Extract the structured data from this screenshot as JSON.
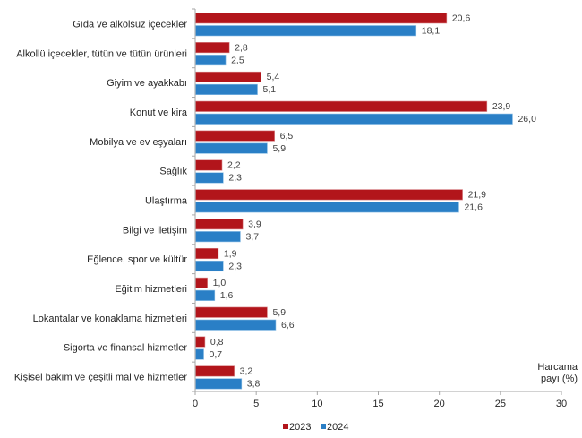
{
  "chart_data": {
    "type": "bar",
    "orientation": "horizontal",
    "title": "",
    "xlabel_lines": [
      "Harcama",
      "payı  (%)"
    ],
    "ylabel": "",
    "xlim": [
      0,
      30
    ],
    "x_ticks": [
      "0",
      "5",
      "10",
      "15",
      "20",
      "25",
      "30"
    ],
    "x_tick_values": [
      0,
      5,
      10,
      15,
      20,
      25,
      30
    ],
    "grid": false,
    "legend_position": "bottom-center",
    "categories": [
      "Gıda ve alkolsüz içecekler",
      "Alkollü içecekler, tütün ve tütün ürünleri",
      "Giyim ve ayakkabı",
      "Konut ve kira",
      "Mobilya ve ev eşyaları",
      "Sağlık",
      "Ulaştırma",
      "Bilgi ve iletişim",
      "Eğlence, spor ve kültür",
      "Eğitim hizmetleri",
      "Lokantalar ve konaklama hizmetleri",
      "Sigorta ve finansal hizmetler",
      "Kişisel bakım ve çeşitli mal ve hizmetler"
    ],
    "series": [
      {
        "name": "2023",
        "color": "#B2151B",
        "values": [
          20.6,
          2.8,
          5.4,
          23.9,
          6.5,
          2.2,
          21.9,
          3.9,
          1.9,
          1.0,
          5.9,
          0.8,
          3.2
        ],
        "labels": [
          "20,6",
          "2,8",
          "5,4",
          "23,9",
          "6,5",
          "2,2",
          "21,9",
          "3,9",
          "1,9",
          "1,0",
          "5,9",
          "0,8",
          "3,2"
        ]
      },
      {
        "name": "2024",
        "color": "#2A7FC6",
        "values": [
          18.1,
          2.5,
          5.1,
          26.0,
          5.9,
          2.3,
          21.6,
          3.7,
          2.3,
          1.6,
          6.6,
          0.7,
          3.8
        ],
        "labels": [
          "18,1",
          "2,5",
          "5,1",
          "26,0",
          "5,9",
          "2,3",
          "21,6",
          "3,7",
          "2,3",
          "1,6",
          "6,6",
          "0,7",
          "3,8"
        ]
      }
    ]
  }
}
